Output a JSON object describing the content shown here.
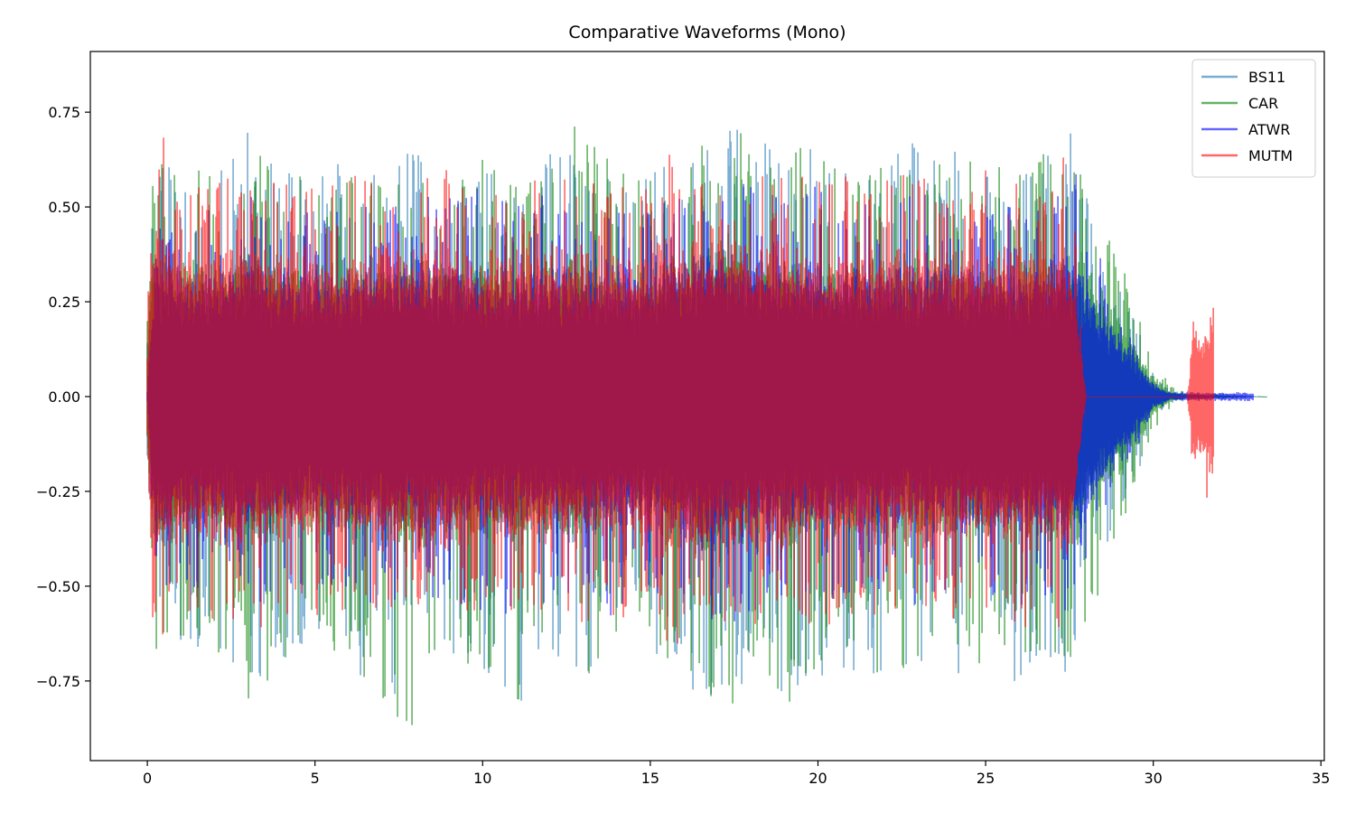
{
  "chart_data": {
    "type": "line",
    "title": "Comparative Waveforms (Mono)",
    "xlabel": "",
    "ylabel": "",
    "xlim": [
      -1.7,
      35.1
    ],
    "ylim": [
      -0.96,
      0.91
    ],
    "x_ticks": [
      0,
      5,
      10,
      15,
      20,
      25,
      30,
      35
    ],
    "x_tick_labels": [
      "0",
      "5",
      "10",
      "15",
      "20",
      "25",
      "30",
      "35"
    ],
    "y_ticks": [
      0.75,
      0.5,
      0.25,
      0.0,
      -0.25,
      -0.5,
      -0.75
    ],
    "y_tick_labels": [
      "0.75",
      "0.50",
      "0.25",
      "0.00",
      "−0.25",
      "−0.50",
      "−0.75"
    ],
    "grid": false,
    "legend_position": "top-right",
    "series": [
      {
        "name": "BS11",
        "color": "#1f77b4",
        "opacity": 0.6,
        "duration": 33.4,
        "envelope": {
          "t": [
            0.0,
            0.2,
            1.0,
            2.0,
            3.0,
            4.0,
            5.0,
            6.0,
            7.0,
            8.0,
            9.0,
            10.0,
            11.0,
            12.0,
            13.0,
            14.0,
            15.0,
            16.0,
            16.8,
            17.5,
            18.0,
            19.0,
            20.0,
            21.0,
            22.0,
            23.0,
            24.0,
            25.0,
            26.0,
            27.0,
            27.5,
            28.0,
            28.5,
            29.0,
            29.5,
            30.0,
            30.5,
            31.0,
            32.0,
            33.4
          ],
          "max": [
            0.2,
            0.68,
            0.6,
            0.62,
            0.7,
            0.6,
            0.6,
            0.62,
            0.58,
            0.7,
            0.6,
            0.64,
            0.55,
            0.68,
            0.62,
            0.58,
            0.6,
            0.65,
            0.72,
            0.72,
            0.66,
            0.68,
            0.66,
            0.6,
            0.64,
            0.68,
            0.66,
            0.64,
            0.6,
            0.68,
            0.72,
            0.55,
            0.4,
            0.28,
            0.2,
            0.06,
            0.02,
            0.01,
            0.01,
            0.0
          ],
          "min": [
            -0.2,
            -0.74,
            -0.7,
            -0.68,
            -0.8,
            -0.7,
            -0.66,
            -0.7,
            -0.8,
            -0.76,
            -0.7,
            -0.72,
            -0.86,
            -0.7,
            -0.76,
            -0.6,
            -0.66,
            -0.76,
            -0.86,
            -0.82,
            -0.78,
            -0.86,
            -0.74,
            -0.72,
            -0.76,
            -0.74,
            -0.78,
            -0.72,
            -0.76,
            -0.72,
            -0.74,
            -0.6,
            -0.42,
            -0.3,
            -0.22,
            -0.06,
            -0.02,
            -0.01,
            -0.01,
            0.0
          ],
          "core": [
            0.1,
            0.24,
            0.2,
            0.2,
            0.22,
            0.2,
            0.19,
            0.2,
            0.2,
            0.21,
            0.2,
            0.2,
            0.19,
            0.2,
            0.2,
            0.18,
            0.19,
            0.22,
            0.24,
            0.23,
            0.21,
            0.21,
            0.2,
            0.19,
            0.2,
            0.2,
            0.2,
            0.2,
            0.19,
            0.2,
            0.2,
            0.16,
            0.12,
            0.09,
            0.06,
            0.02,
            0.006,
            0.003,
            0.002,
            0.0
          ]
        }
      },
      {
        "name": "CAR",
        "color": "#008000",
        "opacity": 0.6,
        "duration": 33.4,
        "envelope": {
          "t": [
            0.0,
            0.2,
            1.0,
            2.0,
            3.0,
            4.0,
            5.0,
            6.0,
            7.0,
            8.0,
            9.0,
            10.0,
            11.0,
            12.0,
            13.0,
            14.0,
            15.0,
            16.0,
            16.8,
            17.5,
            18.0,
            19.0,
            20.0,
            21.0,
            22.0,
            23.0,
            23.6,
            24.0,
            25.0,
            26.0,
            27.0,
            27.5,
            28.0,
            28.5,
            29.0,
            29.5,
            30.0,
            30.5,
            31.0,
            32.0,
            33.4
          ],
          "max": [
            0.2,
            0.64,
            0.6,
            0.6,
            0.66,
            0.6,
            0.6,
            0.6,
            0.62,
            0.66,
            0.6,
            0.66,
            0.56,
            0.66,
            0.74,
            0.6,
            0.58,
            0.6,
            0.7,
            0.74,
            0.66,
            0.7,
            0.64,
            0.6,
            0.64,
            0.66,
            0.82,
            0.62,
            0.62,
            0.6,
            0.66,
            0.76,
            0.64,
            0.5,
            0.36,
            0.26,
            0.1,
            0.03,
            0.01,
            0.006,
            0.0
          ],
          "min": [
            -0.2,
            -0.7,
            -0.72,
            -0.66,
            -0.84,
            -0.7,
            -0.66,
            -0.7,
            -0.82,
            -0.88,
            -0.72,
            -0.72,
            -0.84,
            -0.7,
            -0.78,
            -0.62,
            -0.66,
            -0.72,
            -0.8,
            -0.82,
            -0.78,
            -0.84,
            -0.72,
            -0.7,
            -0.76,
            -0.74,
            -0.76,
            -0.7,
            -0.72,
            -0.72,
            -0.72,
            -0.7,
            -0.68,
            -0.52,
            -0.38,
            -0.26,
            -0.1,
            -0.03,
            -0.01,
            -0.006,
            0.0
          ],
          "core": [
            0.1,
            0.24,
            0.2,
            0.2,
            0.22,
            0.2,
            0.19,
            0.2,
            0.2,
            0.21,
            0.2,
            0.2,
            0.19,
            0.2,
            0.21,
            0.18,
            0.19,
            0.22,
            0.24,
            0.24,
            0.21,
            0.21,
            0.2,
            0.19,
            0.2,
            0.2,
            0.22,
            0.2,
            0.2,
            0.19,
            0.2,
            0.22,
            0.2,
            0.16,
            0.12,
            0.08,
            0.03,
            0.008,
            0.003,
            0.002,
            0.0
          ]
        }
      },
      {
        "name": "ATWR",
        "color": "#0000ff",
        "opacity": 0.6,
        "duration": 33.0,
        "envelope": {
          "t": [
            0.0,
            0.2,
            1.0,
            2.0,
            3.0,
            4.0,
            5.0,
            6.0,
            7.0,
            8.0,
            9.0,
            10.0,
            11.0,
            12.0,
            13.0,
            14.0,
            15.0,
            16.0,
            17.0,
            18.0,
            19.0,
            20.0,
            21.0,
            22.0,
            23.0,
            24.0,
            25.0,
            26.0,
            27.0,
            27.5,
            28.0,
            28.5,
            29.0,
            29.5,
            30.0,
            30.5,
            31.0,
            32.0,
            33.0
          ],
          "max": [
            0.02,
            0.48,
            0.5,
            0.5,
            0.56,
            0.5,
            0.5,
            0.5,
            0.52,
            0.56,
            0.54,
            0.56,
            0.5,
            0.54,
            0.52,
            0.55,
            0.5,
            0.6,
            0.62,
            0.56,
            0.56,
            0.56,
            0.52,
            0.52,
            0.54,
            0.54,
            0.54,
            0.54,
            0.56,
            0.66,
            0.5,
            0.34,
            0.2,
            0.14,
            0.04,
            0.012,
            0.012,
            0.012,
            0.012
          ],
          "min": [
            -0.02,
            -0.5,
            -0.52,
            -0.5,
            -0.58,
            -0.52,
            -0.5,
            -0.54,
            -0.56,
            -0.58,
            -0.54,
            -0.6,
            -0.6,
            -0.54,
            -0.55,
            -0.6,
            -0.52,
            -0.6,
            -0.62,
            -0.58,
            -0.56,
            -0.56,
            -0.54,
            -0.54,
            -0.56,
            -0.56,
            -0.54,
            -0.56,
            -0.56,
            -0.58,
            -0.5,
            -0.34,
            -0.2,
            -0.14,
            -0.04,
            -0.012,
            -0.012,
            -0.012,
            -0.012
          ],
          "core": [
            0.01,
            0.22,
            0.2,
            0.2,
            0.22,
            0.2,
            0.19,
            0.2,
            0.2,
            0.21,
            0.2,
            0.2,
            0.19,
            0.2,
            0.2,
            0.22,
            0.19,
            0.23,
            0.24,
            0.22,
            0.21,
            0.21,
            0.2,
            0.2,
            0.2,
            0.21,
            0.21,
            0.2,
            0.22,
            0.24,
            0.2,
            0.14,
            0.1,
            0.06,
            0.02,
            0.006,
            0.006,
            0.006,
            0.006
          ]
        }
      },
      {
        "name": "MUTM",
        "color": "#ff0000",
        "opacity": 0.6,
        "duration": 31.8,
        "envelope": {
          "t": [
            0.0,
            0.1,
            0.5,
            1.0,
            2.0,
            3.0,
            4.0,
            5.0,
            6.0,
            7.0,
            8.0,
            9.0,
            10.0,
            11.0,
            12.0,
            13.0,
            14.0,
            15.0,
            15.5,
            16.0,
            16.5,
            17.0,
            18.0,
            19.0,
            20.0,
            21.0,
            22.0,
            23.0,
            24.0,
            25.0,
            26.0,
            27.0,
            27.5,
            28.0,
            28.5,
            29.0,
            30.0,
            31.0,
            31.05,
            31.2,
            31.5,
            31.8
          ],
          "max": [
            0.2,
            0.64,
            0.74,
            0.6,
            0.58,
            0.6,
            0.58,
            0.56,
            0.58,
            0.6,
            0.58,
            0.6,
            0.58,
            0.56,
            0.6,
            0.58,
            0.55,
            0.62,
            0.66,
            0.62,
            0.6,
            0.58,
            0.62,
            0.6,
            0.58,
            0.6,
            0.58,
            0.6,
            0.58,
            0.6,
            0.6,
            0.58,
            0.66,
            0.0,
            0.0,
            0.0,
            0.0,
            0.0,
            0.03,
            0.22,
            0.2,
            0.45
          ],
          "min": [
            -0.2,
            -0.66,
            -0.64,
            -0.6,
            -0.6,
            -0.62,
            -0.6,
            -0.58,
            -0.6,
            -0.62,
            -0.6,
            -0.6,
            -0.58,
            -0.6,
            -0.62,
            -0.6,
            -0.58,
            -0.62,
            -0.68,
            -0.66,
            -0.6,
            -0.6,
            -0.62,
            -0.6,
            -0.6,
            -0.62,
            -0.6,
            -0.6,
            -0.6,
            -0.6,
            -0.62,
            -0.6,
            -0.64,
            0.0,
            0.0,
            0.0,
            0.0,
            0.0,
            -0.04,
            -0.24,
            -0.2,
            -0.52
          ],
          "core": [
            0.1,
            0.26,
            0.26,
            0.24,
            0.24,
            0.25,
            0.24,
            0.24,
            0.24,
            0.25,
            0.24,
            0.25,
            0.24,
            0.24,
            0.25,
            0.24,
            0.23,
            0.25,
            0.27,
            0.26,
            0.25,
            0.24,
            0.25,
            0.25,
            0.24,
            0.25,
            0.24,
            0.25,
            0.24,
            0.25,
            0.25,
            0.24,
            0.26,
            0.0,
            0.0,
            0.0,
            0.0,
            0.0,
            0.02,
            0.12,
            0.1,
            0.15
          ]
        }
      }
    ]
  }
}
